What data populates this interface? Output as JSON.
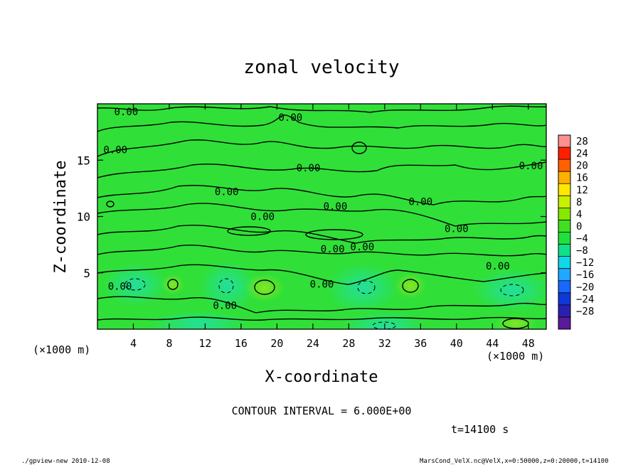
{
  "chart_data": {
    "type": "heatmap",
    "title": "zonal velocity",
    "xlabel": "X-coordinate",
    "ylabel": "Z-coordinate",
    "x_unit_left": "(×1000 m)",
    "x_unit_right": "(×1000 m)",
    "xlim": [
      0,
      50
    ],
    "ylim": [
      0,
      20
    ],
    "x_ticks": [
      4,
      8,
      12,
      16,
      20,
      24,
      28,
      32,
      36,
      40,
      44,
      48
    ],
    "y_ticks": [
      5,
      10,
      15
    ],
    "contour_interval_text": "CONTOUR INTERVAL = 6.000E+00",
    "contour_label": "0.00",
    "contour_label_positions": [
      [
        3.2,
        19.0
      ],
      [
        2.0,
        15.6
      ],
      [
        21.5,
        18.5
      ],
      [
        23.5,
        14.0
      ],
      [
        14.4,
        11.9
      ],
      [
        18.4,
        9.7
      ],
      [
        26.5,
        10.6
      ],
      [
        36.0,
        11.0
      ],
      [
        40.0,
        8.6
      ],
      [
        48.3,
        14.2
      ],
      [
        26.2,
        6.8
      ],
      [
        29.5,
        7.0
      ],
      [
        44.6,
        5.3
      ],
      [
        25.0,
        3.7
      ],
      [
        14.2,
        1.8
      ],
      [
        2.5,
        3.5
      ]
    ],
    "colorbar": {
      "levels": [
        -28,
        -24,
        -20,
        -16,
        -12,
        -8,
        -4,
        0,
        4,
        8,
        12,
        16,
        20,
        24,
        28
      ],
      "tick_labels": [
        "28",
        "24",
        "20",
        "16",
        "12",
        "8",
        "4",
        "0",
        "−4",
        "−8",
        "−12",
        "−16",
        "−20",
        "−24",
        "−28"
      ],
      "colors": [
        "#5a1a9a",
        "#2a20b0",
        "#1038d8",
        "#1868ff",
        "#20a8ff",
        "#10d8e8",
        "#10e088",
        "#20e040",
        "#40e020",
        "#88e800",
        "#c8f000",
        "#ffe800",
        "#ffb000",
        "#ff6000",
        "#ff2000",
        "#ff9090"
      ]
    },
    "grid": false,
    "legend": "colorbar-right"
  },
  "time_label": "t=14100 s",
  "footer": {
    "left": "./gpview-new  2010-12-08",
    "right": "MarsCond_VelX.nc@VelX,x=0:50000,z=0:20000,t=14100"
  }
}
